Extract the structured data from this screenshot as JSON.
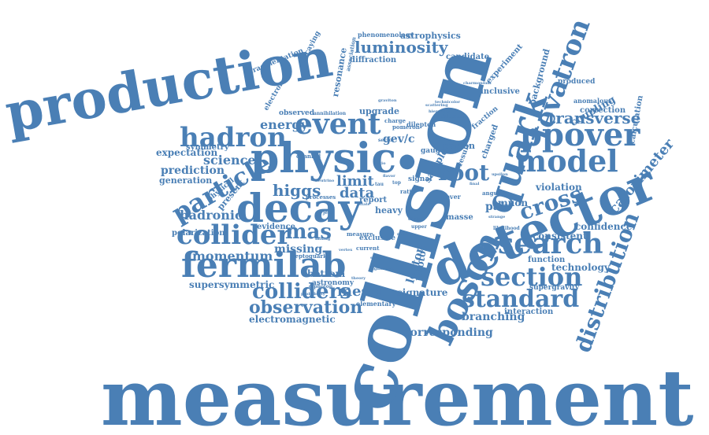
{
  "cloud": {
    "color": "#4a7fb5",
    "words": [
      "measurement",
      "collision",
      "production",
      "detector",
      "physic",
      "decay",
      "fermilab",
      "event",
      "luminosity",
      "boson",
      "quark",
      "tevatron",
      "ppover",
      "model",
      "hadron",
      "particle",
      "collider",
      "search",
      "section",
      "standard",
      "root",
      "distribution",
      "cross",
      "calorimeter",
      "transverse",
      "colliders",
      "observation",
      "mas",
      "momentum",
      "higgs",
      "meson",
      "energy",
      "data",
      "limit",
      "science",
      "prediction",
      "hadronic",
      "polarization",
      "expectation",
      "generation",
      "symmetry",
      "missing",
      "evidence",
      "supersymmetric",
      "electromagnetic",
      "corresponding",
      "branching",
      "interaction",
      "signature",
      "lepton",
      "photon",
      "bottom",
      "astronomy",
      "elementary",
      "technology",
      "function",
      "consistent",
      "confidence",
      "violation",
      "coupling",
      "background",
      "correction",
      "experiment",
      "candidate",
      "astrophysics",
      "phenomenology",
      "diffraction",
      "resonance",
      "fragmentation",
      "electron",
      "decaying",
      "association",
      "observed",
      "upgrade",
      "dilepton",
      "gev/c",
      "parton",
      "muon",
      "pair",
      "calculation",
      "charged",
      "fraction",
      "report",
      "heavy",
      "leptoquarks",
      "exclusive",
      "inclusive",
      "supergravity",
      "produced",
      "anomalous",
      "masse",
      "present",
      "physical",
      "sample",
      "signal",
      "result",
      "pover",
      "channel",
      "current",
      "gauge",
      "pomeron",
      "charge",
      "annihilation",
      "processes",
      "direct",
      "upper",
      "measure",
      "angular",
      "likelihood",
      "diphoton",
      "significant",
      "sector",
      "probability",
      "dileptons",
      "charmonium",
      "theory",
      "ratio",
      "mixing",
      "ratio",
      "scattering",
      "hierarchy",
      "technicolor",
      "graviton",
      "neutrino",
      "jets",
      "final",
      "state",
      "top",
      "flavor",
      "stream",
      "upsilon",
      "strange",
      "muonic",
      "tau",
      "vertex"
    ]
  }
}
